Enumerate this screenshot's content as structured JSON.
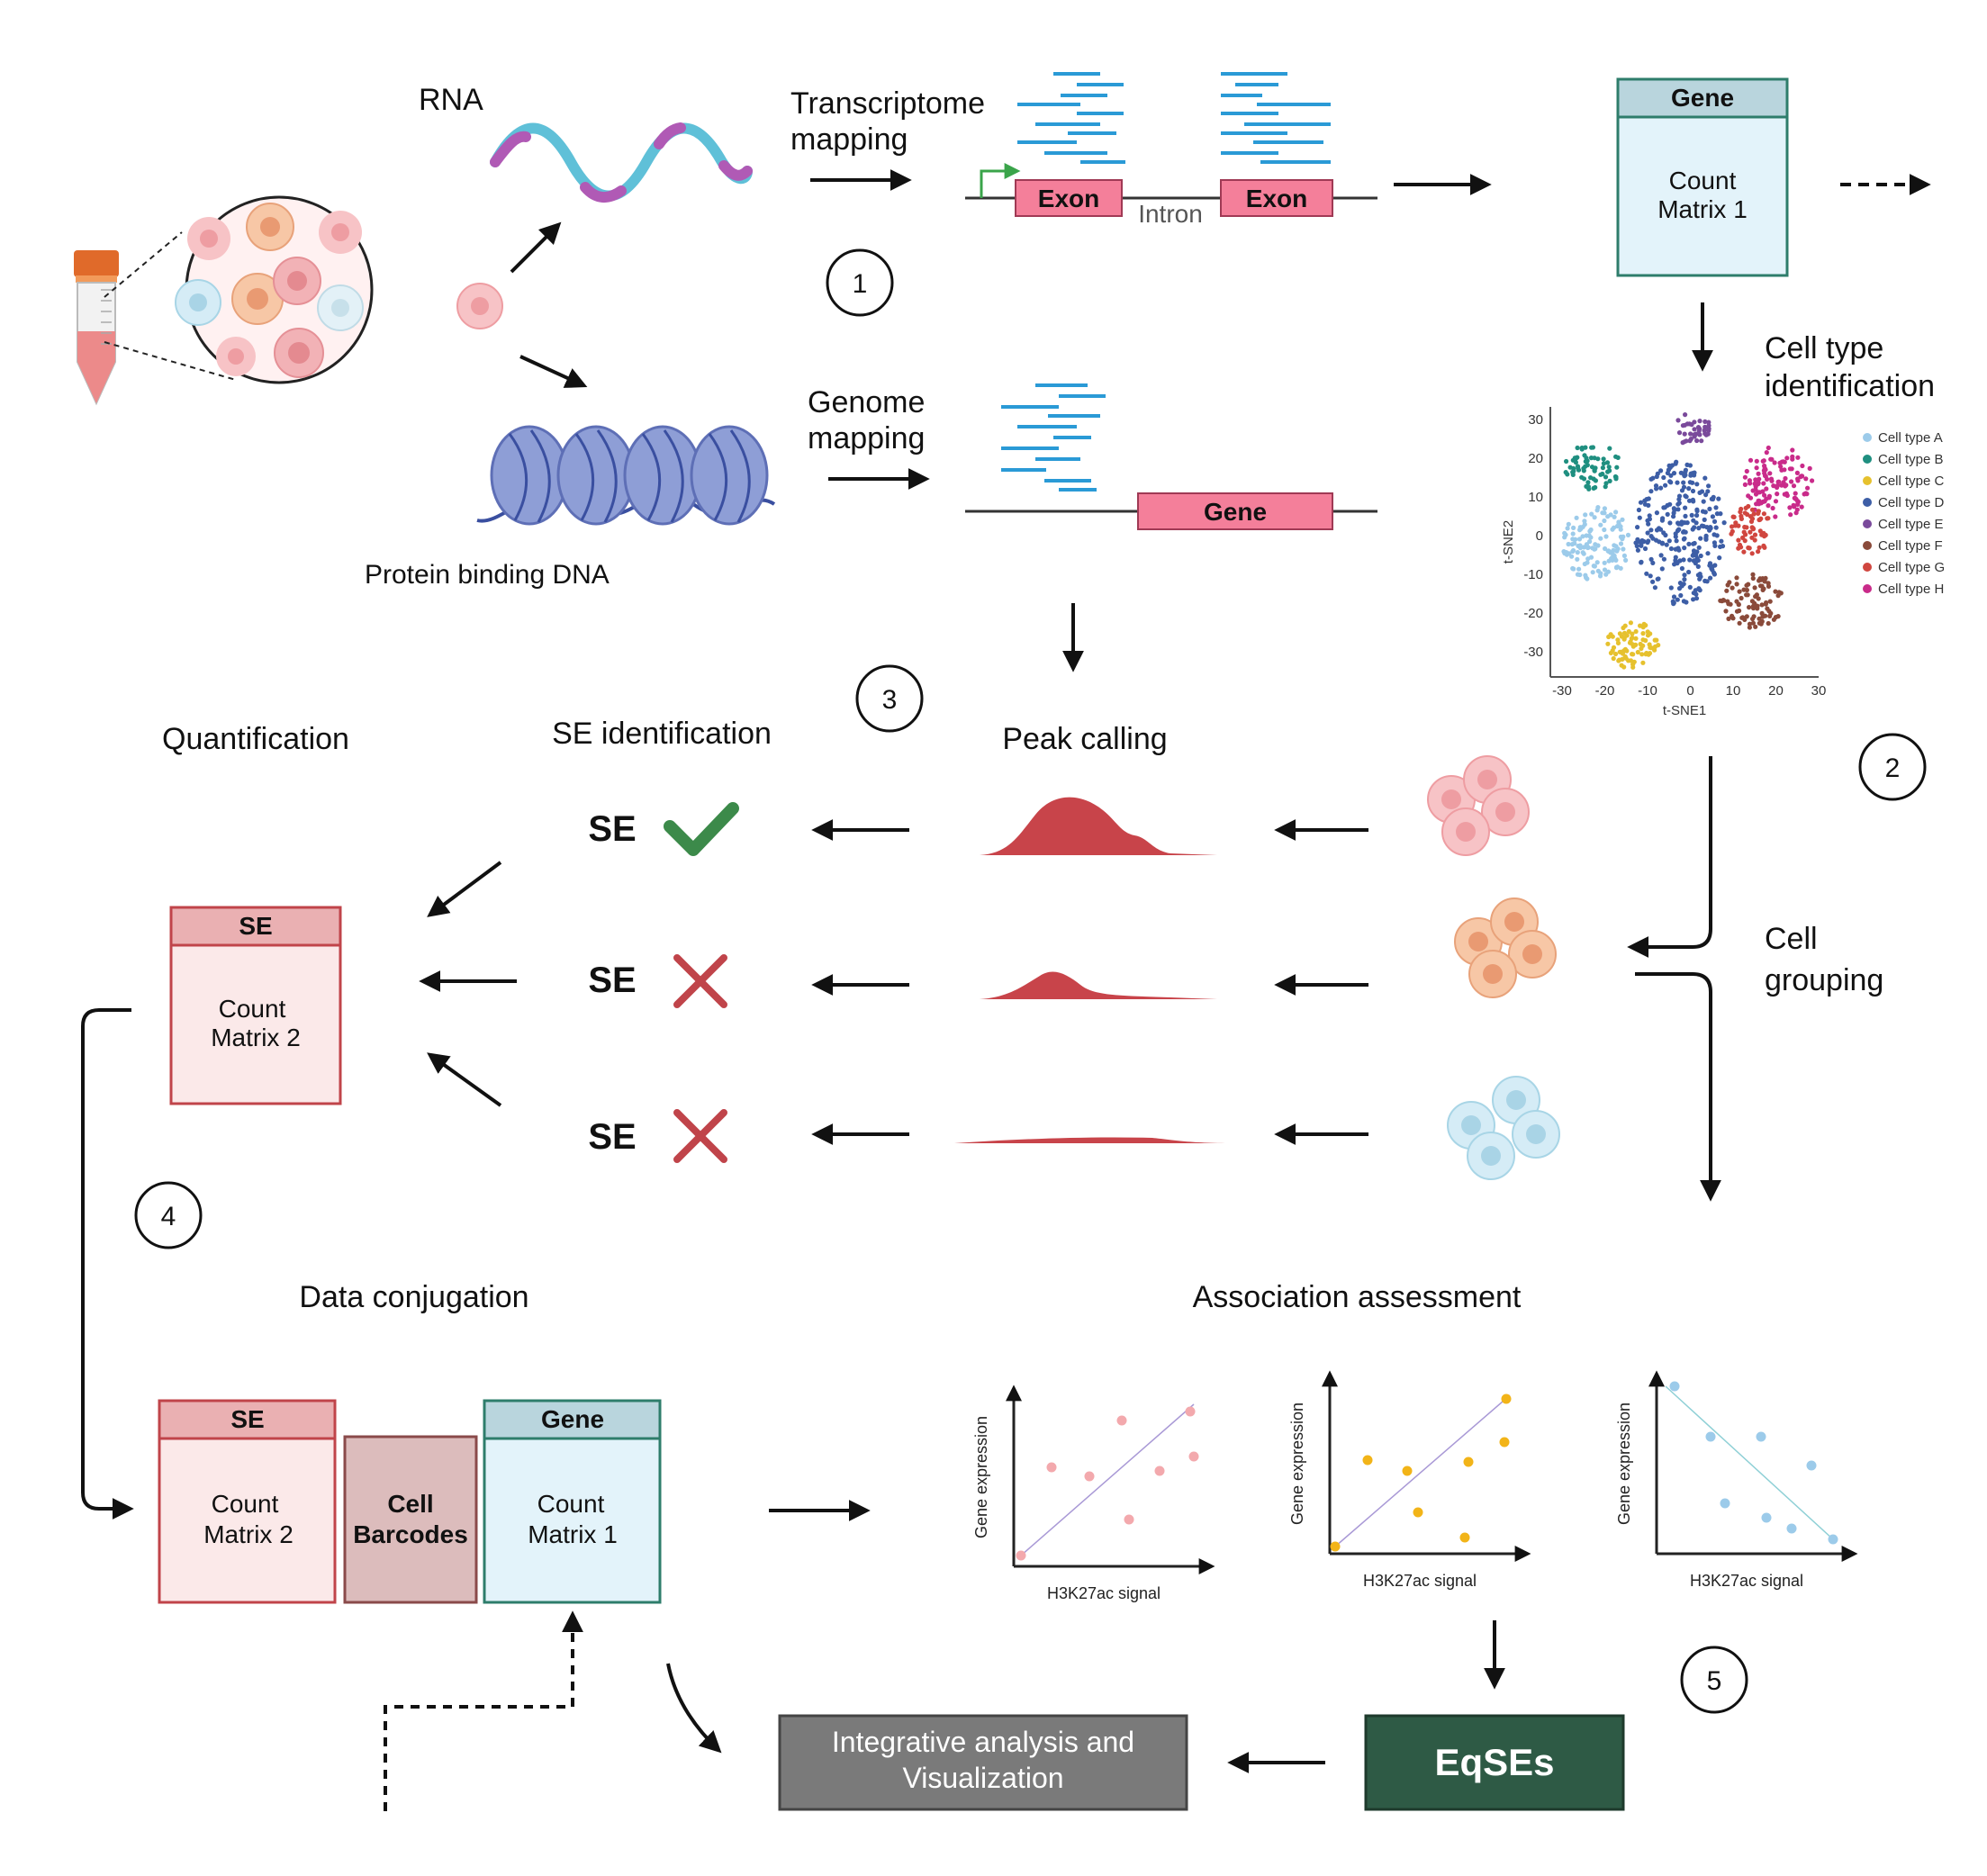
{
  "inputs": {
    "rna_label": "RNA",
    "dna_label": "Protein binding DNA"
  },
  "step1": {
    "number": "1",
    "transcriptome_label_line1": "Transcriptome",
    "transcriptome_label_line2": "mapping",
    "exon1": "Exon",
    "intron": "Intron",
    "exon2": "Exon",
    "genome_label_line1": "Genome",
    "genome_label_line2": "mapping",
    "gene_box": "Gene"
  },
  "matrix_gene": {
    "header": "Gene",
    "body_line1": "Count",
    "body_line2": "Matrix 1"
  },
  "step2": {
    "number": "2",
    "title_line1": "Cell type",
    "title_line2": "identification",
    "xlabel": "t-SNE1",
    "ylabel": "t-SNE2",
    "xticks": [
      "-30",
      "-20",
      "-10",
      "0",
      "10",
      "20",
      "30"
    ],
    "yticks": [
      "30",
      "20",
      "10",
      "0",
      "-10",
      "-20",
      "-30"
    ],
    "legend": [
      {
        "label": "Cell type A",
        "color": "#9ccbea"
      },
      {
        "label": "Cell type B",
        "color": "#1f8f80"
      },
      {
        "label": "Cell type C",
        "color": "#e6c12e"
      },
      {
        "label": "Cell type D",
        "color": "#3d5ea6"
      },
      {
        "label": "Cell type E",
        "color": "#7a4a9b"
      },
      {
        "label": "Cell type F",
        "color": "#8a4a3a"
      },
      {
        "label": "Cell type G",
        "color": "#d0463f"
      },
      {
        "label": "Cell type H",
        "color": "#c92b8a"
      }
    ],
    "cell_grouping_line1": "Cell",
    "cell_grouping_line2": "grouping"
  },
  "step3": {
    "number": "3",
    "peak_calling": "Peak calling",
    "se_identification": "SE identification",
    "rows": [
      {
        "label": "SE",
        "result": "check"
      },
      {
        "label": "SE",
        "result": "cross"
      },
      {
        "label": "SE",
        "result": "cross"
      }
    ]
  },
  "quantification": {
    "title": "Quantification",
    "matrix_header": "SE",
    "matrix_body_line1": "Count",
    "matrix_body_line2": "Matrix 2"
  },
  "step4": {
    "number": "4",
    "title": "Data conjugation",
    "se_header": "SE",
    "se_body_line1": "Count",
    "se_body_line2": "Matrix 2",
    "barcodes_line1": "Cell",
    "barcodes_line2": "Barcodes",
    "gene_header": "Gene",
    "gene_body_line1": "Count",
    "gene_body_line2": "Matrix 1"
  },
  "step5": {
    "number": "5",
    "title": "Association assessment",
    "plot_xlabel": "H3K27ac signal",
    "plot_ylabel": "Gene expression",
    "eqses": "EqSEs",
    "integrative_line1": "Integrative analysis and",
    "integrative_line2": "Visualization"
  },
  "colors": {
    "se_red": "#c0444a",
    "se_fill": "#fbe9e9",
    "se_header": "#eab0b2",
    "gene_teal": "#2e7d6b",
    "gene_fill": "#e3f3fa",
    "gene_header": "#b9d5dd",
    "barcode_fill": "#dcbcbc",
    "barcode_stroke": "#8a4a4a",
    "exon_pink": "#f47f9a",
    "peak_red": "#c8444a",
    "check_green": "#3c8a4a",
    "cross_red": "#c0444a",
    "eqses_green": "#2e5a45",
    "integrative_grey": "#7a7a7a",
    "read_blue": "#2a9ad6"
  }
}
